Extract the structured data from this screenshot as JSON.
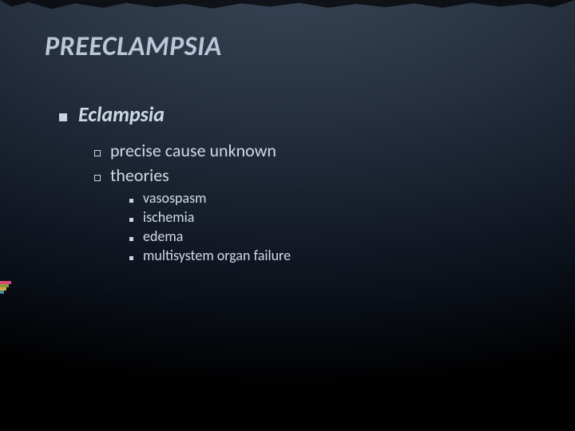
{
  "title": "PREECLAMPSIA",
  "l1": [
    {
      "text": "Eclampsia"
    }
  ],
  "l2": [
    {
      "text": "precise cause unknown"
    },
    {
      "text": "theories"
    }
  ],
  "l3": [
    {
      "text": "vasospasm"
    },
    {
      "text": "ischemia"
    },
    {
      "text": "edema"
    },
    {
      "text": "multisystem organ failure"
    }
  ],
  "accent_colors": {
    "pink": "#d64a7a",
    "olive": "#8a9a3a",
    "gold": "#caa640",
    "teal": "#4a8a9a"
  },
  "text_color": "#d0dae6",
  "title_color": "#b8c8d8",
  "background_gradient": [
    "#3a4558",
    "#2a3544",
    "#1a2230",
    "#0a0f18",
    "#000000"
  ],
  "fonts": {
    "family": "Segoe UI / Calibri",
    "title_size_pt": 26,
    "l1_size_pt": 20,
    "l2_size_pt": 17,
    "l3_size_pt": 14
  }
}
